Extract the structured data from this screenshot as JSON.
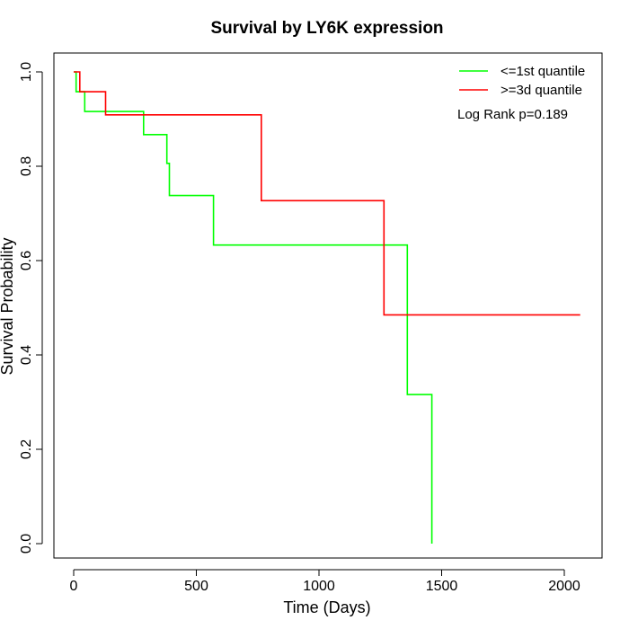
{
  "chart_data": {
    "type": "line",
    "title": "Survival by LY6K expression",
    "xlabel": "Time (Days)",
    "ylabel": "Survival Probability",
    "xlim": [
      0,
      2070
    ],
    "ylim": [
      0,
      1
    ],
    "x_ticks": [
      0,
      500,
      1000,
      1500,
      2000
    ],
    "x_tick_labels": [
      "0",
      "500",
      "1000",
      "1500",
      "2000"
    ],
    "y_ticks": [
      0,
      0.2,
      0.4,
      0.6,
      0.8,
      1.0
    ],
    "y_tick_labels": [
      "0.0",
      "0.2",
      "0.4",
      "0.6",
      "0.8",
      "1.0"
    ],
    "grid": false,
    "legend_position": "top-right",
    "annotation": "Log Rank p=0.189",
    "series": [
      {
        "name": "<=1st quantile",
        "color": "#00ff00",
        "step": true,
        "x": [
          0,
          10,
          45,
          285,
          380,
          390,
          570,
          1360,
          1460
        ],
        "y": [
          1.0,
          0.958,
          0.916,
          0.867,
          0.806,
          0.738,
          0.633,
          0.316,
          0.0
        ]
      },
      {
        "name": ">=3d quantile",
        "color": "#ff0000",
        "step": true,
        "x": [
          0,
          25,
          130,
          765,
          1265,
          2065
        ],
        "y": [
          1.0,
          0.958,
          0.909,
          0.727,
          0.485,
          0.485
        ]
      }
    ]
  }
}
